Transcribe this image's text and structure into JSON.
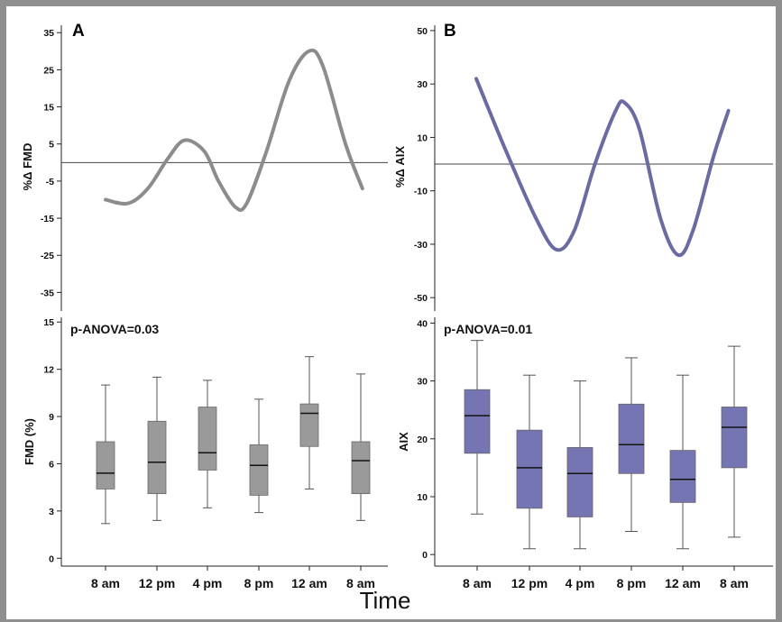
{
  "figure": {
    "xlabel": "Time"
  },
  "chart_data": [
    {
      "panel": "A",
      "type": "line",
      "ylabel": "%Δ FMD",
      "ylim": [
        -40,
        37
      ],
      "yticks": [
        35,
        25,
        15,
        5,
        -5,
        -15,
        -25,
        -35
      ],
      "baseline": 0,
      "color": "#8c8c8c",
      "curve": [
        [
          0.0,
          -10
        ],
        [
          0.08,
          -11
        ],
        [
          0.15,
          -7
        ],
        [
          0.22,
          1
        ],
        [
          0.28,
          6
        ],
        [
          0.35,
          3
        ],
        [
          0.4,
          -5
        ],
        [
          0.46,
          -12
        ],
        [
          0.5,
          -11
        ],
        [
          0.57,
          3
        ],
        [
          0.65,
          22
        ],
        [
          0.72,
          30
        ],
        [
          0.77,
          26
        ],
        [
          0.85,
          5
        ],
        [
          0.91,
          -7
        ]
      ]
    },
    {
      "panel": "B",
      "type": "line",
      "ylabel": "%Δ AIX",
      "ylim": [
        -55,
        52
      ],
      "yticks": [
        50,
        30,
        10,
        -10,
        -30,
        -50
      ],
      "baseline": 0,
      "color": "#6b6ba3",
      "curve": [
        [
          0.0,
          32
        ],
        [
          0.1,
          5
        ],
        [
          0.2,
          -20
        ],
        [
          0.27,
          -32
        ],
        [
          0.33,
          -25
        ],
        [
          0.4,
          0
        ],
        [
          0.47,
          20
        ],
        [
          0.5,
          23
        ],
        [
          0.55,
          13
        ],
        [
          0.62,
          -20
        ],
        [
          0.68,
          -34
        ],
        [
          0.73,
          -25
        ],
        [
          0.8,
          3
        ],
        [
          0.85,
          20
        ]
      ]
    },
    {
      "panel": "A-bottom",
      "type": "box",
      "ylabel": "FMD (%)",
      "annotation": "p-ANOVA=0.03",
      "ylim": [
        -0.5,
        15.3
      ],
      "yticks": [
        15,
        12,
        9,
        6,
        3,
        0
      ],
      "color": "#9a9a9a",
      "categories": [
        "8 am",
        "12 pm",
        "4 pm",
        "8 pm",
        "12 am",
        "8 am"
      ],
      "boxes": [
        {
          "min": 2.2,
          "q1": 4.4,
          "median": 5.4,
          "q3": 7.4,
          "max": 11.0
        },
        {
          "min": 2.4,
          "q1": 4.1,
          "median": 6.1,
          "q3": 8.7,
          "max": 11.5
        },
        {
          "min": 3.2,
          "q1": 5.6,
          "median": 6.7,
          "q3": 9.6,
          "max": 11.3
        },
        {
          "min": 2.9,
          "q1": 4.0,
          "median": 5.9,
          "q3": 7.2,
          "max": 10.1
        },
        {
          "min": 4.4,
          "q1": 7.1,
          "median": 9.2,
          "q3": 9.8,
          "max": 12.8
        },
        {
          "min": 2.4,
          "q1": 4.1,
          "median": 6.2,
          "q3": 7.4,
          "max": 11.7
        }
      ]
    },
    {
      "panel": "B-bottom",
      "type": "box",
      "ylabel": "AIX",
      "annotation": "p-ANOVA=0.01",
      "ylim": [
        -2,
        41
      ],
      "yticks": [
        40,
        30,
        20,
        10,
        0
      ],
      "color": "#7575b3",
      "categories": [
        "8 am",
        "12 pm",
        "4 pm",
        "8 pm",
        "12 am",
        "8 am"
      ],
      "boxes": [
        {
          "min": 7,
          "q1": 17.5,
          "median": 24,
          "q3": 28.5,
          "max": 37
        },
        {
          "min": 1,
          "q1": 8,
          "median": 15,
          "q3": 21.5,
          "max": 31
        },
        {
          "min": 1,
          "q1": 6.5,
          "median": 14,
          "q3": 18.5,
          "max": 30
        },
        {
          "min": 4,
          "q1": 14,
          "median": 19,
          "q3": 26,
          "max": 34
        },
        {
          "min": 1,
          "q1": 9,
          "median": 13,
          "q3": 18,
          "max": 31
        },
        {
          "min": 3,
          "q1": 15,
          "median": 22,
          "q3": 25.5,
          "max": 36
        }
      ]
    }
  ]
}
